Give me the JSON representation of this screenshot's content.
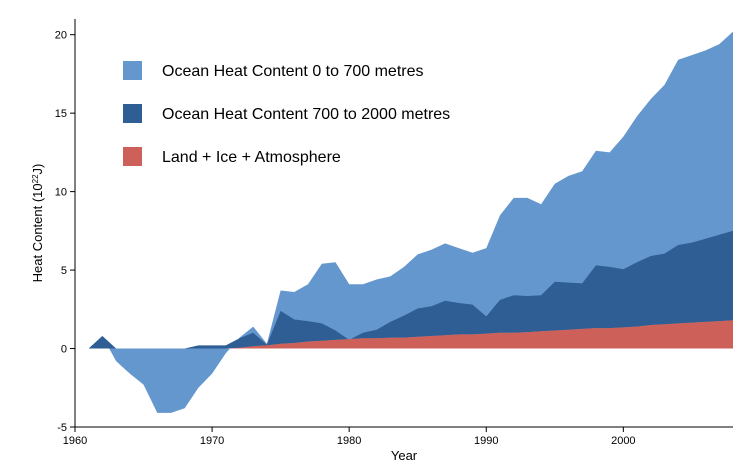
{
  "chart_data": {
    "type": "area",
    "stacked": true,
    "xlabel": "Year",
    "ylabel_main": "Heat Content (10",
    "ylabel_sup": "22",
    "ylabel_tail": "J)",
    "xlim": [
      1960,
      2008
    ],
    "ylim": [
      -5,
      21
    ],
    "x_ticks": [
      1960,
      1970,
      1980,
      1990,
      2000
    ],
    "y_ticks": [
      -5,
      0,
      5,
      10,
      15,
      20
    ],
    "legend_placement": "top-left",
    "x": [
      1960,
      1961,
      1962,
      1963,
      1964,
      1965,
      1966,
      1967,
      1968,
      1969,
      1970,
      1971,
      1972,
      1973,
      1974,
      1975,
      1976,
      1977,
      1978,
      1979,
      1980,
      1981,
      1982,
      1983,
      1984,
      1985,
      1986,
      1987,
      1988,
      1989,
      1990,
      1991,
      1992,
      1993,
      1994,
      1995,
      1996,
      1997,
      1998,
      1999,
      2000,
      2001,
      2002,
      2003,
      2004,
      2005,
      2006,
      2007,
      2008
    ],
    "series": [
      {
        "name": "Land + Ice + Atmosphere",
        "color": "#cd6159",
        "values": [
          0,
          0,
          0,
          0,
          0,
          0,
          0,
          0,
          0,
          0,
          0,
          0,
          0.05,
          0.15,
          0.2,
          0.3,
          0.35,
          0.45,
          0.5,
          0.55,
          0.6,
          0.65,
          0.65,
          0.7,
          0.7,
          0.75,
          0.8,
          0.85,
          0.9,
          0.9,
          0.95,
          1.0,
          1.0,
          1.05,
          1.1,
          1.15,
          1.2,
          1.25,
          1.3,
          1.3,
          1.35,
          1.4,
          1.5,
          1.55,
          1.6,
          1.65,
          1.7,
          1.75,
          1.8
        ]
      },
      {
        "name": "Ocean Heat Content 700 to 2000 metres",
        "color": "#2e5e93",
        "values": [
          0,
          0,
          0.8,
          0,
          0,
          0,
          0,
          0,
          0,
          0.2,
          0.2,
          0.2,
          0.6,
          0.85,
          0.05,
          2.1,
          1.5,
          1.3,
          1.1,
          0.6,
          -0.05,
          0.35,
          0.55,
          1.0,
          1.4,
          1.8,
          1.9,
          2.2,
          2.0,
          1.9,
          1.1,
          2.1,
          2.4,
          2.3,
          2.3,
          3.1,
          3.0,
          2.9,
          4.0,
          3.9,
          3.7,
          4.1,
          4.4,
          4.5,
          5.0,
          5.1,
          5.3,
          5.5,
          5.7
        ]
      },
      {
        "name": "Ocean Heat Content 0 to 700 metres",
        "color": "#6597cf",
        "values": [
          0,
          0,
          0,
          0,
          0,
          0,
          0,
          0,
          0,
          0,
          0,
          0,
          0,
          0,
          0,
          0,
          0,
          0,
          0,
          0,
          0,
          0,
          0,
          0,
          0,
          0,
          0,
          0,
          0,
          0,
          0,
          0,
          0,
          0,
          0,
          0,
          0,
          0,
          0,
          0,
          0,
          0,
          0,
          0,
          0,
          0,
          0,
          0,
          0
        ],
        "total_top": [
          0,
          0,
          0.8,
          -0.8,
          -1.6,
          -2.3,
          -4.1,
          -4.1,
          -3.8,
          -2.5,
          -1.6,
          -0.3,
          0.7,
          1.4,
          0.3,
          3.7,
          3.6,
          4.1,
          5.4,
          5.5,
          4.1,
          4.1,
          4.4,
          4.6,
          5.2,
          6.0,
          6.3,
          6.7,
          6.4,
          6.1,
          6.4,
          8.5,
          9.6,
          9.6,
          9.2,
          10.5,
          11.0,
          11.3,
          12.6,
          12.5,
          13.5,
          14.8,
          15.9,
          16.8,
          18.4,
          18.7,
          19.0,
          19.4,
          20.2
        ]
      }
    ],
    "legend_order": [
      2,
      1,
      0
    ]
  }
}
